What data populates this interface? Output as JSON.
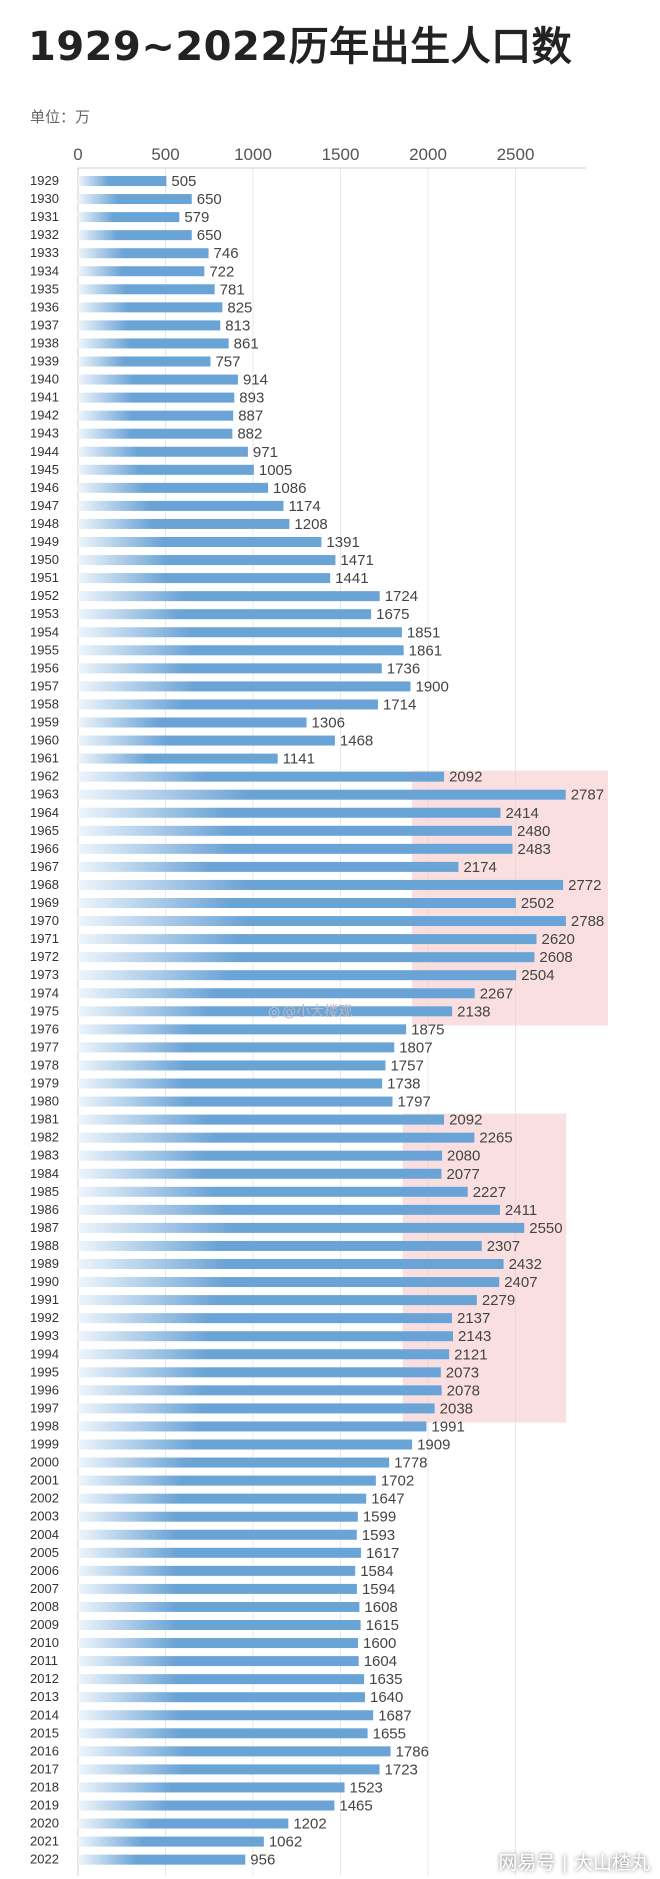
{
  "header": {
    "title": "1929~2022历年出生人口数",
    "unit": "单位：万"
  },
  "watermark": {
    "logo": "◎",
    "text": "@小大楼观"
  },
  "footer": {
    "text": "网易号 | 大山楂丸"
  },
  "colors": {
    "bar": "#6aa3d6",
    "bar_fade": "#eef5fb",
    "highlight": "#f6c4c8",
    "grid": "#e8e8e8",
    "axis": "#cfcfcf"
  },
  "chart_data": {
    "type": "bar",
    "orientation": "horizontal",
    "title": "1929~2022历年出生人口数",
    "unit": "单位：万",
    "xlim": [
      0,
      2900
    ],
    "xticks": [
      0,
      500,
      1000,
      1500,
      2000,
      2500
    ],
    "xtick_position": "top",
    "grid": true,
    "categories": [
      "1929",
      "1930",
      "1931",
      "1932",
      "1933",
      "1934",
      "1935",
      "1936",
      "1937",
      "1938",
      "1939",
      "1940",
      "1941",
      "1942",
      "1943",
      "1944",
      "1945",
      "1946",
      "1947",
      "1948",
      "1949",
      "1950",
      "1951",
      "1952",
      "1953",
      "1954",
      "1955",
      "1956",
      "1957",
      "1958",
      "1959",
      "1960",
      "1961",
      "1962",
      "1963",
      "1964",
      "1965",
      "1966",
      "1967",
      "1968",
      "1969",
      "1970",
      "1971",
      "1972",
      "1973",
      "1974",
      "1975",
      "1976",
      "1977",
      "1978",
      "1979",
      "1980",
      "1981",
      "1982",
      "1983",
      "1984",
      "1985",
      "1986",
      "1987",
      "1988",
      "1989",
      "1990",
      "1991",
      "1992",
      "1993",
      "1994",
      "1995",
      "1996",
      "1997",
      "1998",
      "1999",
      "2000",
      "2001",
      "2002",
      "2003",
      "2004",
      "2005",
      "2006",
      "2007",
      "2008",
      "2009",
      "2010",
      "2011",
      "2012",
      "2013",
      "2014",
      "2015",
      "2016",
      "2017",
      "2018",
      "2019",
      "2020",
      "2021",
      "2022"
    ],
    "values": [
      505,
      650,
      579,
      650,
      746,
      722,
      781,
      825,
      813,
      861,
      757,
      914,
      893,
      887,
      882,
      971,
      1005,
      1086,
      1174,
      1208,
      1391,
      1471,
      1441,
      1724,
      1675,
      1851,
      1861,
      1736,
      1900,
      1714,
      1306,
      1468,
      1141,
      2092,
      2787,
      2414,
      2480,
      2483,
      2174,
      2772,
      2502,
      2788,
      2620,
      2608,
      2504,
      2267,
      2138,
      1875,
      1807,
      1757,
      1738,
      1797,
      2092,
      2265,
      2080,
      2077,
      2227,
      2411,
      2550,
      2307,
      2432,
      2407,
      2279,
      2137,
      2143,
      2121,
      2073,
      2078,
      2038,
      1991,
      1909,
      1778,
      1702,
      1647,
      1599,
      1593,
      1617,
      1584,
      1594,
      1608,
      1615,
      1600,
      1604,
      1635,
      1640,
      1687,
      1655,
      1786,
      1723,
      1523,
      1465,
      1202,
      1062,
      956
    ],
    "highlights": [
      {
        "from": "1962",
        "to": "1975"
      },
      {
        "from": "1981",
        "to": "1997"
      }
    ]
  }
}
